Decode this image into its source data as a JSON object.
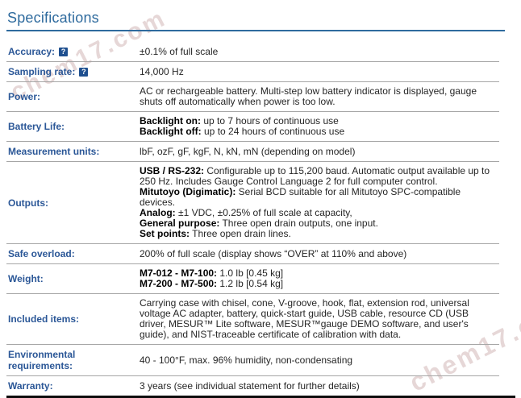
{
  "page": {
    "title": "Specifications"
  },
  "watermark": {
    "text": "chem17.com"
  },
  "colors": {
    "heading": "#2f6b9e",
    "heading_rule": "#2f6b9e",
    "label": "#2b5797",
    "value_text": "#262626",
    "divider": "#a6a6a6",
    "bottom_rule": "#0d0d0d",
    "help_icon_bg": "#1e4f8f"
  },
  "table": {
    "help_glyph": "?",
    "rows": [
      {
        "label": "Accuracy:",
        "help": true,
        "value_lines": [
          [
            {
              "t": "±0.1% of full scale"
            }
          ]
        ]
      },
      {
        "label": "Sampling rate:",
        "help": true,
        "value_lines": [
          [
            {
              "t": "14,000 Hz"
            }
          ]
        ]
      },
      {
        "label": "Power:",
        "value_lines": [
          [
            {
              "t": "AC or rechargeable battery. Multi-step low battery indicator is displayed, gauge shuts off automatically when power is too low."
            }
          ]
        ]
      },
      {
        "label": "Battery Life:",
        "value_lines": [
          [
            {
              "t": "Backlight on:",
              "b": true
            },
            {
              "t": " up to 7 hours of continuous use"
            }
          ],
          [
            {
              "t": "Backlight off:",
              "b": true
            },
            {
              "t": " up to 24 hours of continuous use"
            }
          ]
        ]
      },
      {
        "label": "Measurement units:",
        "value_lines": [
          [
            {
              "t": "lbF, ozF, gF, kgF, N, kN, mN (depending on model)"
            }
          ]
        ]
      },
      {
        "label": "Outputs:",
        "value_lines": [
          [
            {
              "t": "USB / RS-232:",
              "b": true
            },
            {
              "t": " Configurable up to 115,200 baud. Automatic output available up to 250 Hz. Includes Gauge Control Language 2 for full computer control."
            }
          ],
          [
            {
              "t": "Mitutoyo (Digimatic):",
              "b": true
            },
            {
              "t": " Serial BCD suitable for all Mitutoyo SPC-compatible devices."
            }
          ],
          [
            {
              "t": "Analog:",
              "b": true
            },
            {
              "t": " ±1 VDC, ±0.25% of full scale at capacity,"
            }
          ],
          [
            {
              "t": "General purpose:",
              "b": true
            },
            {
              "t": " Three open drain outputs, one input."
            }
          ],
          [
            {
              "t": "Set points:",
              "b": true
            },
            {
              "t": " Three open drain lines."
            }
          ]
        ]
      },
      {
        "label": "Safe overload:",
        "value_lines": [
          [
            {
              "t": "200% of full scale (display shows “OVER” at 110% and above)"
            }
          ]
        ]
      },
      {
        "label": "Weight:",
        "value_lines": [
          [
            {
              "t": "M7-012 - M7-100:",
              "b": true
            },
            {
              "t": " 1.0 lb [0.45 kg]"
            }
          ],
          [
            {
              "t": "M7-200 - M7-500:",
              "b": true
            },
            {
              "t": " 1.2 lb [0.54 kg]"
            }
          ]
        ]
      },
      {
        "label": "Included items:",
        "value_lines": [
          [
            {
              "t": "Carrying case with chisel, cone, V-groove, hook, flat, extension rod, universal voltage AC adapter, battery, quick-start guide, USB cable, resource CD (USB driver, MESUR™ Lite software, MESUR™gauge DEMO software, and user's guide), and NIST-traceable certificate of calibration with data."
            }
          ]
        ]
      },
      {
        "label": "Environmental requirements:",
        "value_lines": [
          [
            {
              "t": "40 - 100°F, max. 96% humidity, non-condensating"
            }
          ]
        ]
      },
      {
        "label": "Warranty:",
        "value_lines": [
          [
            {
              "t": "3 years (see individual statement for further details)"
            }
          ]
        ]
      }
    ]
  }
}
